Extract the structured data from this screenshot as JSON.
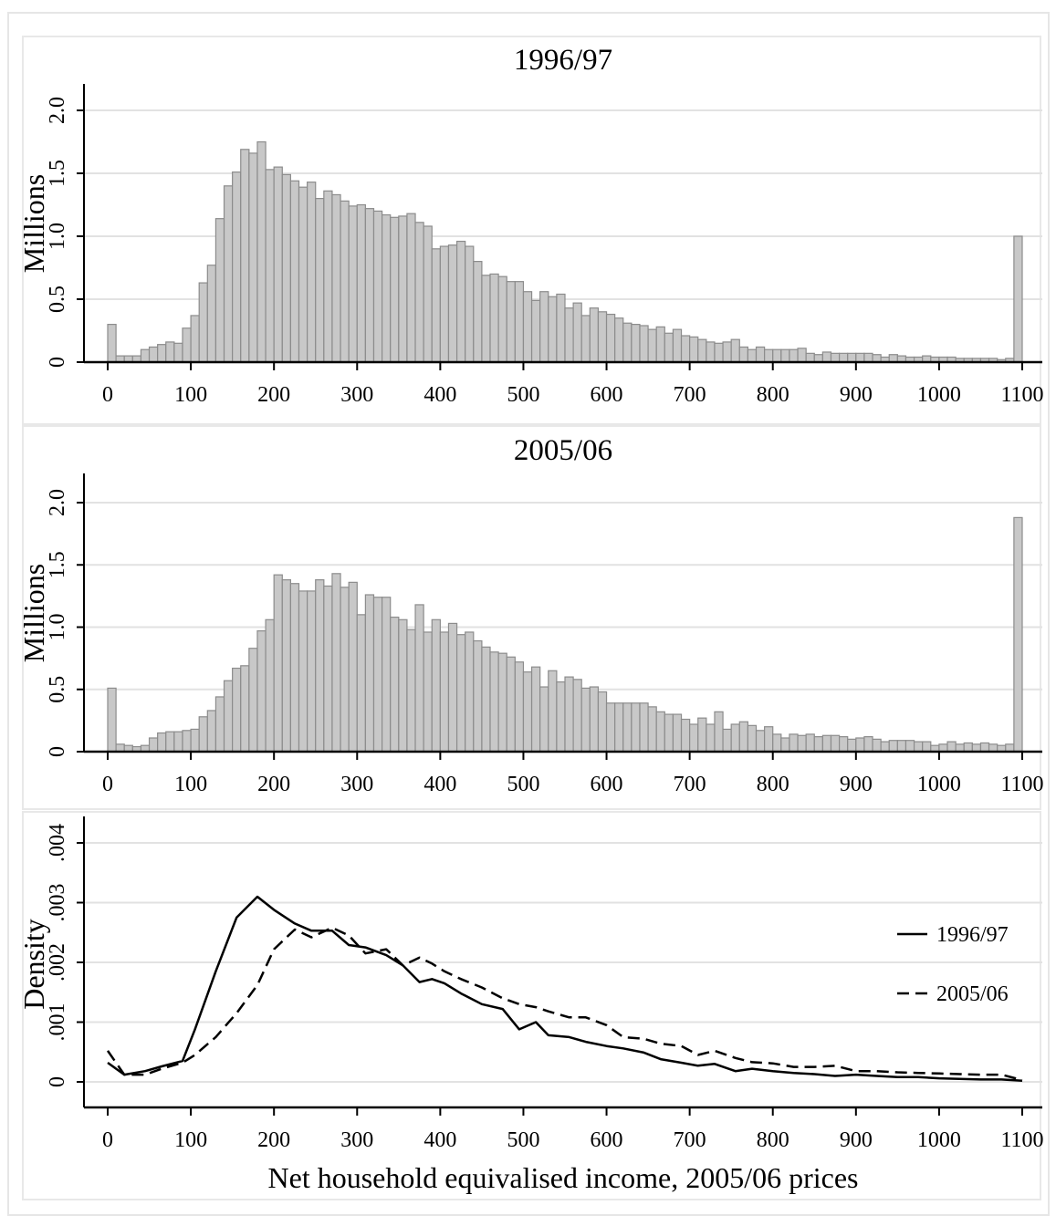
{
  "chart_data": [
    {
      "type": "bar",
      "title": "1996/97",
      "ylabel": "Millions",
      "xlabel": "",
      "xlim": [
        0,
        1100
      ],
      "ylim": [
        0,
        2.0
      ],
      "grid": true,
      "bin_width": 10,
      "x_ticks": [
        "0",
        "100",
        "200",
        "300",
        "400",
        "500",
        "600",
        "700",
        "800",
        "900",
        "1000",
        "1100"
      ],
      "y_ticks": [
        "0",
        "0.5",
        "1.0",
        "1.5",
        "2.0"
      ],
      "bar_color": "#c8c8c8",
      "values": [
        0.3,
        0.05,
        0.05,
        0.05,
        0.1,
        0.12,
        0.14,
        0.16,
        0.15,
        0.27,
        0.37,
        0.63,
        0.77,
        1.14,
        1.4,
        1.51,
        1.69,
        1.66,
        1.75,
        1.53,
        1.55,
        1.49,
        1.44,
        1.39,
        1.43,
        1.3,
        1.36,
        1.33,
        1.28,
        1.24,
        1.25,
        1.22,
        1.2,
        1.17,
        1.15,
        1.16,
        1.18,
        1.11,
        1.08,
        0.9,
        0.92,
        0.93,
        0.96,
        0.92,
        0.8,
        0.69,
        0.7,
        0.68,
        0.64,
        0.64,
        0.56,
        0.49,
        0.56,
        0.52,
        0.54,
        0.43,
        0.47,
        0.37,
        0.43,
        0.4,
        0.38,
        0.35,
        0.31,
        0.3,
        0.29,
        0.26,
        0.28,
        0.23,
        0.26,
        0.21,
        0.2,
        0.18,
        0.16,
        0.15,
        0.16,
        0.18,
        0.12,
        0.1,
        0.12,
        0.1,
        0.1,
        0.1,
        0.1,
        0.11,
        0.07,
        0.06,
        0.08,
        0.07,
        0.07,
        0.07,
        0.07,
        0.07,
        0.06,
        0.04,
        0.06,
        0.05,
        0.04,
        0.04,
        0.05,
        0.04,
        0.04,
        0.04,
        0.03,
        0.03,
        0.03,
        0.03,
        0.03,
        0.02,
        0.03,
        1.0
      ]
    },
    {
      "type": "bar",
      "title": "2005/06",
      "ylabel": "Millions",
      "xlabel": "",
      "xlim": [
        0,
        1100
      ],
      "ylim": [
        0,
        2.0
      ],
      "grid": true,
      "bin_width": 10,
      "x_ticks": [
        "0",
        "100",
        "200",
        "300",
        "400",
        "500",
        "600",
        "700",
        "800",
        "900",
        "1000",
        "1100"
      ],
      "y_ticks": [
        "0",
        "0.5",
        "1.0",
        "1.5",
        "2.0"
      ],
      "bar_color": "#c8c8c8",
      "values": [
        0.51,
        0.06,
        0.05,
        0.04,
        0.05,
        0.11,
        0.15,
        0.16,
        0.16,
        0.17,
        0.18,
        0.28,
        0.33,
        0.44,
        0.57,
        0.67,
        0.69,
        0.83,
        0.97,
        1.06,
        1.42,
        1.38,
        1.35,
        1.29,
        1.29,
        1.38,
        1.33,
        1.43,
        1.32,
        1.36,
        1.1,
        1.26,
        1.24,
        1.24,
        1.08,
        1.06,
        0.98,
        1.18,
        0.96,
        1.06,
        0.96,
        1.03,
        0.94,
        0.96,
        0.89,
        0.84,
        0.8,
        0.79,
        0.76,
        0.72,
        0.64,
        0.68,
        0.52,
        0.65,
        0.56,
        0.6,
        0.58,
        0.51,
        0.52,
        0.48,
        0.39,
        0.39,
        0.39,
        0.39,
        0.39,
        0.36,
        0.32,
        0.3,
        0.3,
        0.26,
        0.22,
        0.27,
        0.22,
        0.32,
        0.18,
        0.22,
        0.24,
        0.21,
        0.17,
        0.2,
        0.14,
        0.11,
        0.14,
        0.13,
        0.14,
        0.12,
        0.13,
        0.13,
        0.12,
        0.1,
        0.11,
        0.12,
        0.1,
        0.08,
        0.09,
        0.09,
        0.09,
        0.08,
        0.08,
        0.05,
        0.06,
        0.08,
        0.06,
        0.07,
        0.06,
        0.07,
        0.06,
        0.05,
        0.06,
        1.88
      ]
    },
    {
      "type": "line",
      "title": "",
      "ylabel": "Density",
      "xlabel": "Net household equivalised income, 2005/06 prices",
      "xlim": [
        0,
        1100
      ],
      "ylim": [
        0,
        0.004
      ],
      "grid": true,
      "x_ticks": [
        "0",
        "100",
        "200",
        "300",
        "400",
        "500",
        "600",
        "700",
        "800",
        "900",
        "1000",
        "1100"
      ],
      "y_ticks": [
        "0",
        ".001",
        ".002",
        ".003",
        ".004"
      ],
      "legend_position": "right",
      "series": [
        {
          "name": "1996/97",
          "style": "solid",
          "x": [
            0,
            20,
            45,
            65,
            90,
            105,
            130,
            155,
            180,
            200,
            225,
            245,
            270,
            290,
            310,
            335,
            355,
            375,
            390,
            405,
            425,
            450,
            475,
            495,
            515,
            530,
            555,
            575,
            600,
            620,
            645,
            665,
            690,
            710,
            730,
            755,
            775,
            800,
            825,
            850,
            875,
            900,
            925,
            950,
            975,
            1000,
            1025,
            1050,
            1075,
            1100
          ],
          "y": [
            0.00032,
            0.00012,
            0.00018,
            0.00026,
            0.00035,
            0.00088,
            0.00185,
            0.00275,
            0.0031,
            0.00288,
            0.00265,
            0.00253,
            0.00253,
            0.00229,
            0.00225,
            0.00212,
            0.00195,
            0.00167,
            0.00172,
            0.00165,
            0.00148,
            0.0013,
            0.00122,
            0.00088,
            0.001,
            0.00078,
            0.00075,
            0.00067,
            0.0006,
            0.00056,
            0.00049,
            0.00038,
            0.00032,
            0.00027,
            0.0003,
            0.00018,
            0.00022,
            0.00018,
            0.00015,
            0.00013,
            0.0001,
            0.00012,
            0.0001,
            8e-05,
            8e-05,
            6e-05,
            5e-05,
            4e-05,
            4e-05,
            2e-05
          ]
        },
        {
          "name": "2005/06",
          "style": "dashed",
          "x": [
            0,
            20,
            45,
            65,
            90,
            105,
            130,
            155,
            180,
            200,
            225,
            245,
            270,
            290,
            310,
            335,
            355,
            375,
            390,
            405,
            425,
            450,
            475,
            495,
            515,
            530,
            555,
            575,
            600,
            620,
            645,
            665,
            690,
            710,
            730,
            755,
            775,
            800,
            825,
            850,
            875,
            900,
            925,
            950,
            975,
            1000,
            1025,
            1050,
            1075,
            1100
          ],
          "y": [
            0.00052,
            0.00012,
            0.00012,
            0.00022,
            0.00032,
            0.00045,
            0.00075,
            0.00115,
            0.00162,
            0.00222,
            0.00255,
            0.00242,
            0.00258,
            0.00245,
            0.00215,
            0.00222,
            0.00195,
            0.00208,
            0.00198,
            0.00185,
            0.00172,
            0.00158,
            0.0014,
            0.0013,
            0.00125,
            0.00118,
            0.00108,
            0.00108,
            0.00095,
            0.00075,
            0.00072,
            0.00064,
            0.0006,
            0.00045,
            0.00052,
            0.0004,
            0.00033,
            0.00031,
            0.00025,
            0.00025,
            0.00027,
            0.00018,
            0.00018,
            0.00016,
            0.00015,
            0.00014,
            0.00013,
            0.00012,
            0.00012,
            3e-05
          ]
        }
      ]
    }
  ]
}
